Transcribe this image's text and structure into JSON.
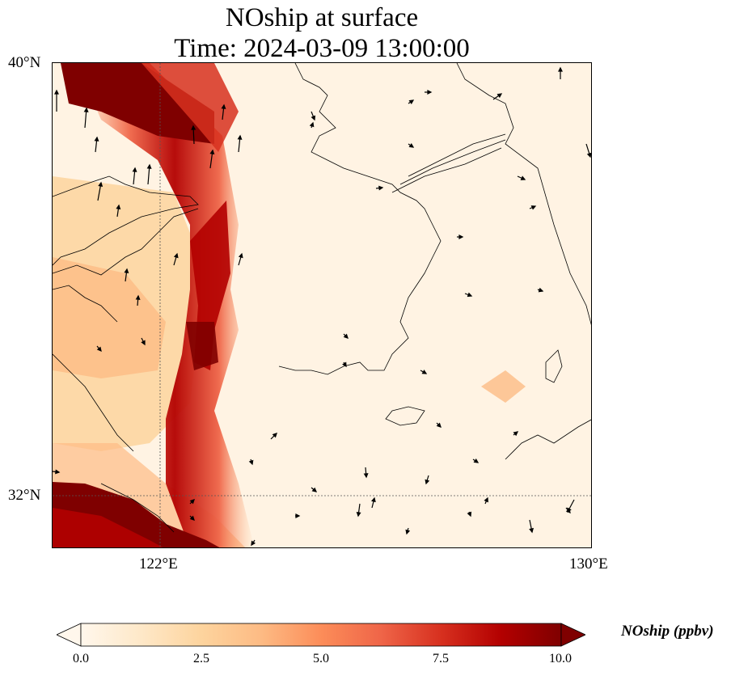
{
  "title_line1": "NOship at surface",
  "title_line2": "Time: 2024-03-09 13:00:00",
  "axes": {
    "lat_ticks": [
      "40°N",
      "32°N"
    ],
    "lon_ticks": [
      "122°E",
      "130°E"
    ],
    "lon_range": [
      120,
      130
    ],
    "lat_range": [
      31,
      40
    ],
    "gridlines": "dotted"
  },
  "colorbar": {
    "label": "NOship (ppbv)",
    "ticks": [
      "0.0",
      "2.5",
      "5.0",
      "7.5",
      "10.0"
    ],
    "range": [
      0,
      10
    ],
    "extend": "both",
    "colormap": [
      "#fff7ec",
      "#fee8c8",
      "#fdd49e",
      "#fdbb84",
      "#fc8d59",
      "#ef6548",
      "#d7301f",
      "#b30000",
      "#7f0000"
    ]
  },
  "map": {
    "type": "gridded concentration field with wind vectors and coastlines",
    "region": "Yellow Sea, Korean Peninsula, eastern China",
    "max_concentration_color": "#7f0000"
  }
}
